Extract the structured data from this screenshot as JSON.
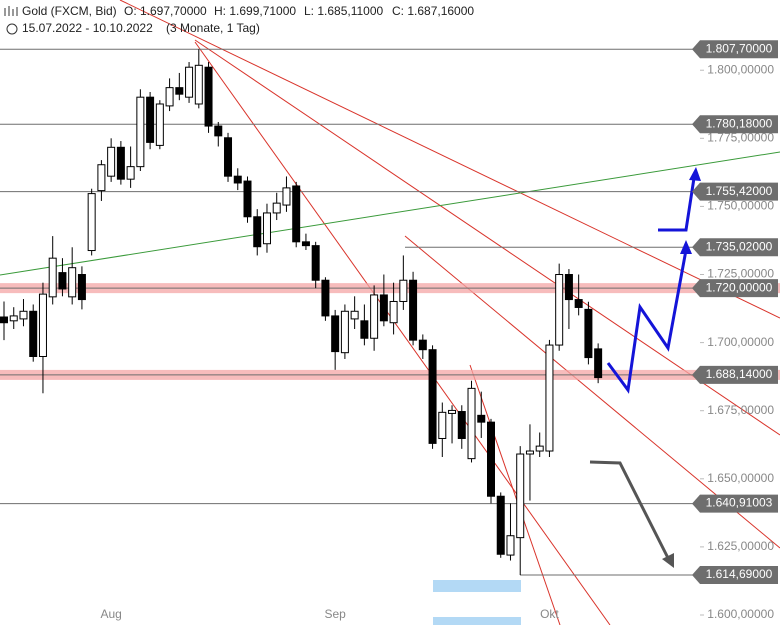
{
  "chart_data": {
    "type": "candlestick",
    "header": {
      "instrument": "Gold (FXCM, Bid)",
      "open": "O: 1.697,70000",
      "high": "H: 1.699,71000",
      "low": "L: 1.685,11000",
      "close": "C: 1.687,16000",
      "range": "15.07.2022 - 10.10.2022",
      "period": "(3 Monate, 1 Tag)"
    },
    "categories": [
      null,
      null,
      null,
      null,
      null,
      null,
      null,
      null,
      null,
      null,
      null,
      "Aug",
      null,
      null,
      null,
      null,
      null,
      null,
      null,
      null,
      null,
      null,
      null,
      null,
      null,
      null,
      null,
      null,
      null,
      null,
      null,
      null,
      null,
      null,
      "Sep",
      null,
      null,
      null,
      null,
      null,
      null,
      null,
      null,
      null,
      null,
      null,
      null,
      null,
      null,
      null,
      null,
      null,
      null,
      null,
      null,
      null,
      "Okt",
      null,
      null,
      null,
      null,
      null
    ],
    "ohlc": [
      [
        1709.4,
        1715.1,
        1700.9,
        1707.3
      ],
      [
        1708.0,
        1713,
        1705,
        1709.8
      ],
      [
        1708.7,
        1716,
        1706,
        1711.5
      ],
      [
        1711.5,
        1714,
        1693,
        1694.9
      ],
      [
        1694.9,
        1722,
        1681.4,
        1717.8
      ],
      [
        1716.8,
        1739.1,
        1714,
        1731.0
      ],
      [
        1725.7,
        1731,
        1717,
        1719.7
      ],
      [
        1716.8,
        1735,
        1714,
        1727.5
      ],
      [
        1725.0,
        1728,
        1712.2,
        1715.8
      ],
      [
        1733.8,
        1756.5,
        1732,
        1754.7
      ],
      [
        1755.8,
        1767,
        1752,
        1765.3
      ],
      [
        1761.1,
        1775,
        1759,
        1771.7
      ],
      [
        1771.7,
        1774,
        1758,
        1760.0
      ],
      [
        1760.0,
        1772,
        1756.8,
        1764.6
      ],
      [
        1764.6,
        1793,
        1763,
        1790.1
      ],
      [
        1790.1,
        1792,
        1771,
        1773.5
      ],
      [
        1772.4,
        1789,
        1771,
        1787.6
      ],
      [
        1786.9,
        1797,
        1785,
        1793.6
      ],
      [
        1793.6,
        1799,
        1789,
        1791.2
      ],
      [
        1790.1,
        1803,
        1788,
        1801.1
      ],
      [
        1787.6,
        1807.7,
        1786,
        1801.8
      ],
      [
        1801.1,
        1803,
        1777,
        1779.5
      ],
      [
        1779.5,
        1781,
        1772,
        1775.9
      ],
      [
        1775.2,
        1777,
        1759,
        1761.1
      ],
      [
        1761.1,
        1764,
        1756,
        1758.6
      ],
      [
        1759.3,
        1761,
        1744,
        1746.2
      ],
      [
        1746.2,
        1749,
        1732,
        1735.2
      ],
      [
        1736.3,
        1751,
        1733,
        1747.6
      ],
      [
        1747.6,
        1755,
        1745,
        1751.2
      ],
      [
        1750.5,
        1761,
        1748,
        1756.8
      ],
      [
        1757.5,
        1759,
        1735,
        1737.0
      ],
      [
        1737.0,
        1740,
        1734,
        1735.6
      ],
      [
        1735.6,
        1737,
        1720,
        1722.9
      ],
      [
        1722.9,
        1724,
        1708,
        1709.8
      ],
      [
        1709.8,
        1712,
        1690,
        1696.7
      ],
      [
        1696.3,
        1714,
        1694,
        1711.5
      ],
      [
        1708.7,
        1717,
        1705,
        1711.5
      ],
      [
        1708.0,
        1714,
        1699,
        1701.6
      ],
      [
        1701.6,
        1721,
        1697,
        1717.5
      ],
      [
        1717.5,
        1725,
        1706,
        1708.0
      ],
      [
        1707.3,
        1722,
        1703,
        1715.1
      ],
      [
        1715.1,
        1732,
        1712,
        1722.9
      ],
      [
        1722.9,
        1726,
        1699,
        1700.9
      ],
      [
        1700.9,
        1703,
        1694,
        1697.4
      ],
      [
        1697.4,
        1699,
        1661,
        1663.0
      ],
      [
        1664.8,
        1678,
        1658,
        1674.4
      ],
      [
        1674.0,
        1677,
        1663,
        1675.1
      ],
      [
        1674.7,
        1677,
        1661,
        1664.8
      ],
      [
        1657.4,
        1686,
        1656,
        1683.2
      ],
      [
        1673.3,
        1682,
        1665,
        1670.8
      ],
      [
        1670.8,
        1672,
        1641,
        1643.6
      ],
      [
        1643.6,
        1645,
        1621,
        1622.3
      ],
      [
        1622.0,
        1641,
        1620,
        1629.1
      ],
      [
        1628.4,
        1662,
        1614.69,
        1659.1
      ],
      [
        1659.1,
        1670,
        1642,
        1660.2
      ],
      [
        1660.2,
        1667,
        1658,
        1662.0
      ],
      [
        1660.2,
        1701,
        1658,
        1699.1
      ],
      [
        1699.1,
        1729,
        1697,
        1725.0
      ],
      [
        1725.0,
        1727,
        1705,
        1715.8
      ],
      [
        1715.8,
        1725,
        1710,
        1712.9
      ],
      [
        1712.2,
        1715,
        1692,
        1694.5
      ],
      [
        1697.7,
        1699.71,
        1685.11,
        1687.16
      ]
    ],
    "ylim": [
      1600,
      1817.7
    ],
    "yticks": [
      {
        "value": 1600,
        "label": "1.600,00000"
      },
      {
        "value": 1625,
        "label": "1.625,00000"
      },
      {
        "value": 1650,
        "label": "1.650,00000"
      },
      {
        "value": 1675,
        "label": "1.675,00000"
      },
      {
        "value": 1700,
        "label": "1.700,00000"
      },
      {
        "value": 1725,
        "label": "1.725,00000"
      },
      {
        "value": 1750,
        "label": "1.750,00000"
      },
      {
        "value": 1775,
        "label": "1.775,00000"
      },
      {
        "value": 1800,
        "label": "1.800,00000"
      }
    ],
    "levels": [
      {
        "value": 1807.7,
        "label": "1.807,70000"
      },
      {
        "value": 1780.18,
        "label": "1.780,18000"
      },
      {
        "value": 1755.42,
        "label": "1.755,42000"
      },
      {
        "value": 1735.02,
        "label": "1.735,02000"
      },
      {
        "value": 1720,
        "label": "1.720,00000",
        "highlight": true
      },
      {
        "value": 1688.14,
        "label": "1.688,14000",
        "highlight": true
      },
      {
        "value": 1640.91003,
        "label": "1.640,91003"
      },
      {
        "value": 1614.69,
        "label": "1.614,69000"
      }
    ],
    "up_color": "#ffffff",
    "down_color": "#000000",
    "level_color": "#6e6e6e",
    "highlight_color": "#f4a6a6"
  }
}
